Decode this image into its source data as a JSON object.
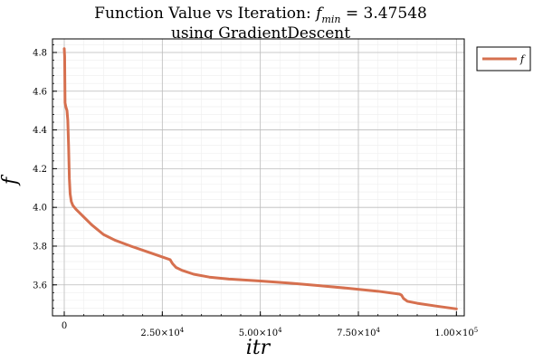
{
  "chart_data": {
    "type": "line",
    "title_line1": "Function Value vs Iteration: ",
    "title_symbol": "f",
    "title_subscript": "min",
    "title_value": " =  3.47548",
    "title_line2": "using GradientDescent",
    "xlabel": "itr",
    "ylabel": "f",
    "xlim": [
      -3000,
      102000
    ],
    "ylim": [
      3.44,
      4.87
    ],
    "grid": true,
    "minor_grid": true,
    "legend_position": "outside-top-right",
    "series": [
      {
        "name": "f",
        "color": "#d6704f",
        "x": [
          0,
          100,
          200,
          400,
          700,
          900,
          1100,
          1300,
          1500,
          1800,
          2200,
          3000,
          4000,
          5000,
          7000,
          10000,
          13000,
          17000,
          22000,
          27000,
          27600,
          28500,
          30000,
          33000,
          37000,
          42000,
          50000,
          58000,
          65000,
          72000,
          80000,
          85500,
          86000,
          86500,
          87500,
          90000,
          95000,
          100000
        ],
        "y": [
          4.82,
          4.78,
          4.54,
          4.52,
          4.5,
          4.45,
          4.32,
          4.15,
          4.07,
          4.03,
          4.01,
          3.99,
          3.97,
          3.95,
          3.91,
          3.86,
          3.83,
          3.8,
          3.765,
          3.73,
          3.71,
          3.69,
          3.675,
          3.655,
          3.64,
          3.63,
          3.62,
          3.608,
          3.596,
          3.583,
          3.567,
          3.552,
          3.547,
          3.53,
          3.515,
          3.505,
          3.49,
          3.476
        ]
      }
    ],
    "x_ticks": [
      {
        "value": 0,
        "mantissa": "0",
        "exponent": ""
      },
      {
        "value": 25000,
        "mantissa": "2.50×10",
        "exponent": "4"
      },
      {
        "value": 50000,
        "mantissa": "5.00×10",
        "exponent": "4"
      },
      {
        "value": 75000,
        "mantissa": "7.50×10",
        "exponent": "4"
      },
      {
        "value": 100000,
        "mantissa": "1.00×10",
        "exponent": "5"
      }
    ],
    "y_ticks": [
      {
        "value": 3.6,
        "label": "3.6"
      },
      {
        "value": 3.8,
        "label": "3.8"
      },
      {
        "value": 4.0,
        "label": "4.0"
      },
      {
        "value": 4.2,
        "label": "4.2"
      },
      {
        "value": 4.4,
        "label": "4.4"
      },
      {
        "value": 4.6,
        "label": "4.6"
      },
      {
        "value": 4.8,
        "label": "4.8"
      }
    ]
  },
  "colors": {
    "grid_major": "#bcbcbc",
    "grid_minor": "#eeeeee",
    "axis": "#000000"
  }
}
